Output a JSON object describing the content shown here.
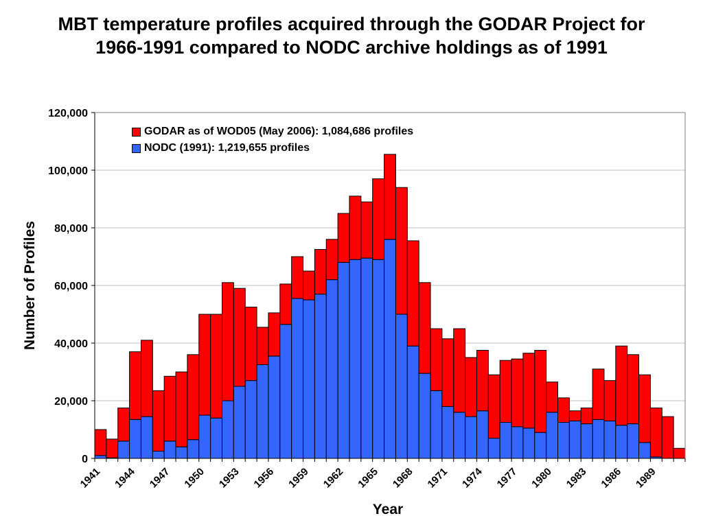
{
  "title_lines": [
    "MBT temperature profiles acquired through the GODAR Project for",
    "1966-1991 compared to NODC archive holdings as of 1991"
  ],
  "colors": {
    "godar": "#ff0000",
    "nodc": "#3366ff",
    "grid": "#c0c0c0"
  },
  "chart_data": {
    "type": "bar",
    "stacked": true,
    "title": "MBT temperature profiles acquired through the GODAR Project for 1966-1991 compared to NODC archive holdings as of 1991",
    "xlabel": "Year",
    "ylabel": "Number of Profiles",
    "ylim": [
      0,
      120000
    ],
    "yticks": [
      0,
      20000,
      40000,
      60000,
      80000,
      100000,
      120000
    ],
    "ytick_labels": [
      "0",
      "20,000",
      "40,000",
      "60,000",
      "80,000",
      "100,000",
      "120,000"
    ],
    "grid": "horizontal",
    "legend_position": "top-left inside plot",
    "categories": [
      1941,
      1942,
      1943,
      1944,
      1945,
      1946,
      1947,
      1948,
      1949,
      1950,
      1951,
      1952,
      1953,
      1954,
      1955,
      1956,
      1957,
      1958,
      1959,
      1960,
      1961,
      1962,
      1963,
      1964,
      1965,
      1966,
      1967,
      1968,
      1969,
      1970,
      1971,
      1972,
      1973,
      1974,
      1975,
      1976,
      1977,
      1978,
      1979,
      1980,
      1981,
      1982,
      1983,
      1984,
      1985,
      1986,
      1987,
      1988,
      1989,
      1990,
      1991
    ],
    "xtick_labels": [
      "1941",
      "1944",
      "1947",
      "1950",
      "1953",
      "1956",
      "1959",
      "1962",
      "1965",
      "1968",
      "1971",
      "1974",
      "1977",
      "1980",
      "1983",
      "1986",
      "1989"
    ],
    "series": [
      {
        "name": "NODC (1991): 1,219,655 profiles",
        "values": [
          1000,
          200,
          6000,
          13500,
          14500,
          2500,
          6000,
          4000,
          6500,
          15000,
          14000,
          20000,
          25000,
          27000,
          32500,
          35500,
          46500,
          55500,
          55000,
          57000,
          62000,
          68000,
          69000,
          69500,
          69000,
          76000,
          50000,
          39000,
          29500,
          23500,
          18000,
          16000,
          14500,
          16500,
          7000,
          12500,
          11000,
          10500,
          9000,
          16000,
          12500,
          13000,
          12000,
          13500,
          13000,
          11500,
          12000,
          5500,
          500,
          0,
          0
        ]
      },
      {
        "name": "GODAR as of WOD05 (May 2006): 1,084,686 profiles",
        "values": [
          9000,
          6500,
          11500,
          23500,
          26500,
          21000,
          22500,
          26000,
          29500,
          35000,
          36000,
          41000,
          34000,
          25500,
          13000,
          15000,
          14000,
          14500,
          10000,
          15500,
          14000,
          17000,
          22000,
          19500,
          28000,
          29500,
          44000,
          36500,
          31500,
          21500,
          23500,
          29000,
          20500,
          21000,
          22000,
          21500,
          23500,
          26000,
          28500,
          10500,
          8500,
          3500,
          5500,
          17500,
          14000,
          27500,
          24000,
          23500,
          17000,
          14500,
          3500
        ]
      }
    ]
  }
}
